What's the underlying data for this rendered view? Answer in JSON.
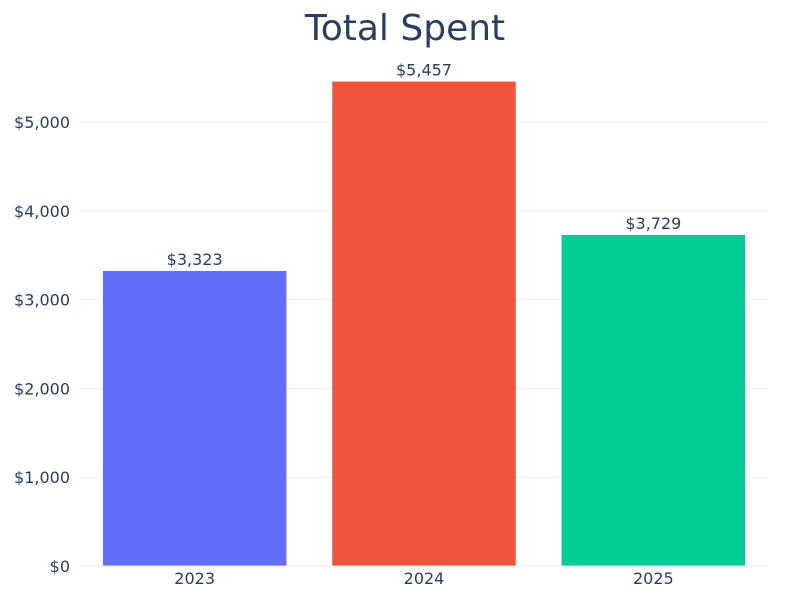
{
  "chart_data": {
    "type": "bar",
    "title": "Total Spent",
    "xlabel": "",
    "ylabel": "",
    "categories": [
      "2023",
      "2024",
      "2025"
    ],
    "values": [
      3323,
      5457,
      3729
    ],
    "data_labels": [
      "$3,323",
      "$5,457",
      "$3,729"
    ],
    "colors": [
      "#636efa",
      "#ef553b",
      "#00cc96"
    ],
    "ylim": [
      0,
      5700
    ],
    "yticks": [
      0,
      1000,
      2000,
      3000,
      4000,
      5000
    ],
    "ytick_labels": [
      "$0",
      "$1,000",
      "$2,000",
      "$3,000",
      "$4,000",
      "$5,000"
    ],
    "grid": true,
    "legend": false
  }
}
